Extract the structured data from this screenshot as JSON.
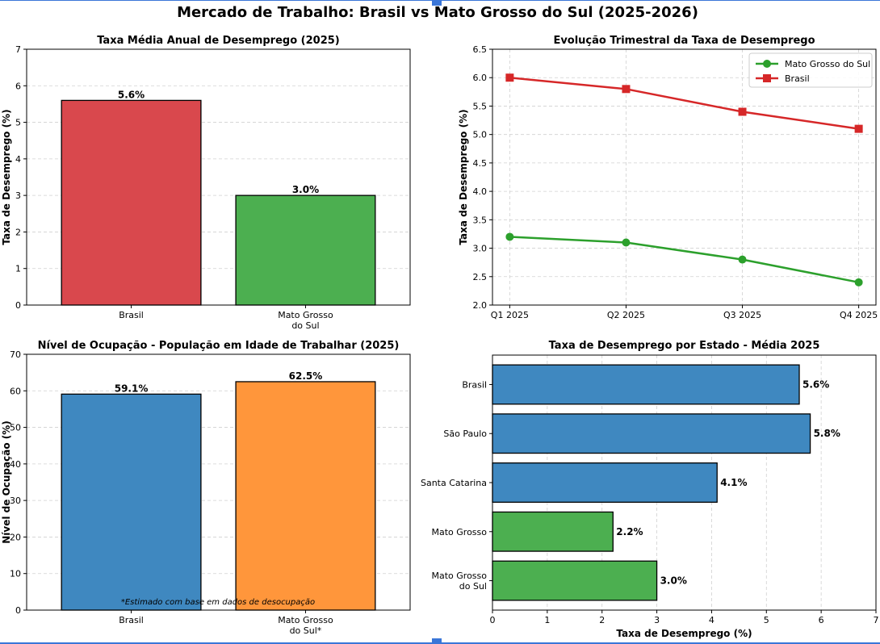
{
  "suptitle": "Mercado de Trabalho: Brasil vs Mato Grosso do Sul (2025-2026)",
  "colors": {
    "red": "#d9484d",
    "green": "#4caf50",
    "blue": "#3f88c0",
    "orange": "#ff963b",
    "line_red": "#d62728",
    "line_green": "#2ca02c",
    "selection": "#3a76d8"
  },
  "chart_data": [
    {
      "id": "annual",
      "type": "bar",
      "title": "Taxa Média Anual de Desemprego (2025)",
      "categories": [
        [
          "Brasil"
        ],
        [
          "Mato Grosso",
          "do Sul"
        ]
      ],
      "values": [
        5.6,
        3.0
      ],
      "value_labels": [
        "5.6%",
        "3.0%"
      ],
      "bar_colors": [
        "#d9484d",
        "#4caf50"
      ],
      "ylabel": "Taxa de Desemprego (%)",
      "xlabel": "",
      "ylim": [
        0,
        7
      ],
      "yticks": [
        0,
        1,
        2,
        3,
        4,
        5,
        6,
        7
      ],
      "ytick_labels": [
        "0",
        "1",
        "2",
        "3",
        "4",
        "5",
        "6",
        "7"
      ],
      "grid": "y"
    },
    {
      "id": "quarterly",
      "type": "line",
      "title": "Evolução Trimestral da Taxa de Desemprego",
      "x": [
        "Q1 2025",
        "Q2 2025",
        "Q3 2025",
        "Q4 2025"
      ],
      "series": [
        {
          "name": "Mato Grosso do Sul",
          "values": [
            3.2,
            3.1,
            2.8,
            2.4
          ],
          "color": "#2ca02c",
          "marker": "circle"
        },
        {
          "name": "Brasil",
          "values": [
            6.0,
            5.8,
            5.4,
            5.1
          ],
          "color": "#d62728",
          "marker": "square"
        }
      ],
      "ylabel": "Taxa de Desemprego (%)",
      "xlabel": "",
      "ylim": [
        2.0,
        6.5
      ],
      "yticks": [
        2.0,
        2.5,
        3.0,
        3.5,
        4.0,
        4.5,
        5.0,
        5.5,
        6.0,
        6.5
      ],
      "ytick_labels": [
        "2.0",
        "2.5",
        "3.0",
        "3.5",
        "4.0",
        "4.5",
        "5.0",
        "5.5",
        "6.0",
        "6.5"
      ],
      "legend": "top-right",
      "grid": "both"
    },
    {
      "id": "occupation",
      "type": "bar",
      "title": "Nível de Ocupação - População em Idade de Trabalhar (2025)",
      "categories": [
        [
          "Brasil"
        ],
        [
          "Mato Grosso",
          "do Sul*"
        ]
      ],
      "values": [
        59.1,
        62.5
      ],
      "value_labels": [
        "59.1%",
        "62.5%"
      ],
      "bar_colors": [
        "#3f88c0",
        "#ff963b"
      ],
      "ylabel": "Nível de Ocupação (%)",
      "xlabel": "",
      "ylim": [
        0,
        70
      ],
      "yticks": [
        0,
        10,
        20,
        30,
        40,
        50,
        60,
        70
      ],
      "ytick_labels": [
        "0",
        "10",
        "20",
        "30",
        "40",
        "50",
        "60",
        "70"
      ],
      "annotation": "*Estimado com base em dados de desocupação",
      "grid": "y"
    },
    {
      "id": "states",
      "type": "barh",
      "title": "Taxa de Desemprego por Estado - Média 2025",
      "categories": [
        [
          "Brasil"
        ],
        [
          "São Paulo"
        ],
        [
          "Santa Catarina"
        ],
        [
          "Mato Grosso"
        ],
        [
          "Mato Grosso",
          "do Sul"
        ]
      ],
      "values": [
        5.6,
        5.8,
        4.1,
        2.2,
        3.0
      ],
      "value_labels": [
        "5.6%",
        "5.8%",
        "4.1%",
        "2.2%",
        "3.0%"
      ],
      "bar_colors": [
        "#3f88c0",
        "#3f88c0",
        "#3f88c0",
        "#4caf50",
        "#4caf50"
      ],
      "xlabel": "Taxa de Desemprego (%)",
      "ylabel": "",
      "xlim": [
        0,
        7
      ],
      "xticks": [
        0,
        1,
        2,
        3,
        4,
        5,
        6,
        7
      ],
      "xtick_labels": [
        "0",
        "1",
        "2",
        "3",
        "4",
        "5",
        "6",
        "7"
      ],
      "grid": "x"
    }
  ]
}
